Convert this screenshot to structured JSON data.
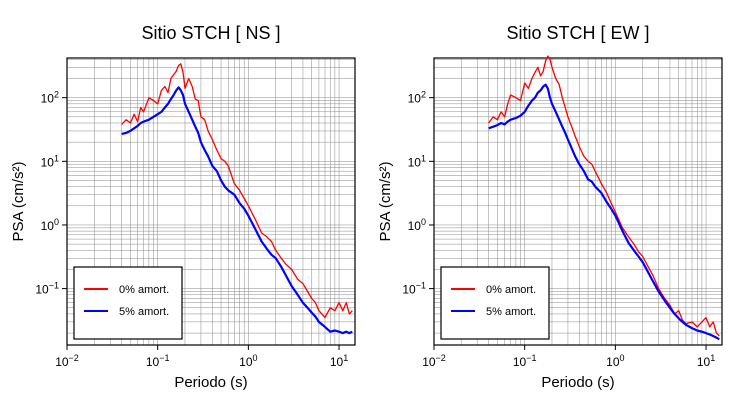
{
  "chart_data": [
    {
      "type": "line",
      "title": "Sitio STCH [ NS ]",
      "xlabel": "Periodo (s)",
      "ylabel": "PSA (cm/s²)",
      "x_scale": "log",
      "y_scale": "log",
      "xlim": [
        0.01,
        15
      ],
      "ylim": [
        0.013,
        420
      ],
      "grid": true,
      "legend_position": "bottom-left",
      "x_ticks": [
        {
          "value": 0.01,
          "base": "10",
          "exp": "−2"
        },
        {
          "value": 0.1,
          "base": "10",
          "exp": "−1"
        },
        {
          "value": 1,
          "base": "10",
          "exp": "0"
        },
        {
          "value": 10,
          "base": "10",
          "exp": "1"
        }
      ],
      "y_ticks": [
        {
          "value": 0.1,
          "base": "10",
          "exp": "−1"
        },
        {
          "value": 1,
          "base": "10",
          "exp": "0"
        },
        {
          "value": 10,
          "base": "10",
          "exp": "1"
        },
        {
          "value": 100,
          "base": "10",
          "exp": "2"
        }
      ],
      "series": [
        {
          "name": "0% amort.",
          "color": "#ff0000",
          "x": [
            0.04,
            0.045,
            0.05,
            0.055,
            0.06,
            0.065,
            0.07,
            0.08,
            0.09,
            0.1,
            0.11,
            0.12,
            0.13,
            0.14,
            0.15,
            0.16,
            0.17,
            0.18,
            0.19,
            0.2,
            0.22,
            0.24,
            0.26,
            0.28,
            0.3,
            0.33,
            0.36,
            0.4,
            0.45,
            0.5,
            0.55,
            0.6,
            0.7,
            0.8,
            0.9,
            1.0,
            1.2,
            1.4,
            1.6,
            1.8,
            2.0,
            2.3,
            2.6,
            3.0,
            3.5,
            4.0,
            4.5,
            5.0,
            5.5,
            6.0,
            7.0,
            8.0,
            9.0,
            10.0,
            11.0,
            12.0,
            13.0,
            14.0
          ],
          "y": [
            38,
            45,
            40,
            55,
            42,
            70,
            60,
            100,
            90,
            80,
            130,
            150,
            120,
            200,
            230,
            260,
            320,
            340,
            250,
            140,
            200,
            150,
            95,
            90,
            50,
            45,
            30,
            22,
            15,
            11,
            10,
            8.5,
            4.5,
            3.5,
            2.6,
            2.0,
            1.2,
            0.75,
            0.65,
            0.55,
            0.4,
            0.3,
            0.24,
            0.2,
            0.14,
            0.12,
            0.09,
            0.07,
            0.06,
            0.045,
            0.035,
            0.05,
            0.045,
            0.06,
            0.045,
            0.06,
            0.04,
            0.045
          ]
        },
        {
          "name": "5% amort.",
          "color": "#0000ff",
          "x": [
            0.04,
            0.045,
            0.05,
            0.055,
            0.06,
            0.065,
            0.07,
            0.08,
            0.09,
            0.1,
            0.11,
            0.12,
            0.13,
            0.14,
            0.15,
            0.16,
            0.17,
            0.18,
            0.19,
            0.2,
            0.22,
            0.24,
            0.26,
            0.28,
            0.3,
            0.33,
            0.36,
            0.4,
            0.45,
            0.5,
            0.55,
            0.6,
            0.7,
            0.8,
            0.9,
            1.0,
            1.2,
            1.4,
            1.6,
            1.8,
            2.0,
            2.3,
            2.6,
            3.0,
            3.5,
            4.0,
            4.5,
            5.0,
            5.5,
            6.0,
            7.0,
            8.0,
            9.0,
            10.0,
            11.0,
            12.0,
            13.0,
            14.0
          ],
          "y": [
            27,
            28,
            30,
            33,
            36,
            40,
            42,
            45,
            50,
            55,
            60,
            70,
            80,
            95,
            110,
            130,
            145,
            130,
            110,
            80,
            60,
            45,
            35,
            28,
            20,
            15,
            12,
            8.5,
            7,
            5,
            4,
            3.5,
            3.0,
            2.2,
            1.8,
            1.4,
            0.85,
            0.55,
            0.42,
            0.34,
            0.3,
            0.22,
            0.16,
            0.11,
            0.08,
            0.06,
            0.05,
            0.042,
            0.036,
            0.03,
            0.025,
            0.021,
            0.022,
            0.021,
            0.02,
            0.021,
            0.02,
            0.021
          ]
        }
      ]
    },
    {
      "type": "line",
      "title": "Sitio STCH [ EW ]",
      "xlabel": "Periodo (s)",
      "ylabel": "PSA (cm/s²)",
      "x_scale": "log",
      "y_scale": "log",
      "xlim": [
        0.01,
        15
      ],
      "ylim": [
        0.013,
        420
      ],
      "grid": true,
      "legend_position": "bottom-left",
      "x_ticks": [
        {
          "value": 0.01,
          "base": "10",
          "exp": "−2"
        },
        {
          "value": 0.1,
          "base": "10",
          "exp": "−1"
        },
        {
          "value": 1,
          "base": "10",
          "exp": "0"
        },
        {
          "value": 10,
          "base": "10",
          "exp": "1"
        }
      ],
      "y_ticks": [
        {
          "value": 0.1,
          "base": "10",
          "exp": "−1"
        },
        {
          "value": 1,
          "base": "10",
          "exp": "0"
        },
        {
          "value": 10,
          "base": "10",
          "exp": "1"
        },
        {
          "value": 100,
          "base": "10",
          "exp": "2"
        }
      ],
      "series": [
        {
          "name": "0% amort.",
          "color": "#ff0000",
          "x": [
            0.04,
            0.045,
            0.05,
            0.055,
            0.06,
            0.065,
            0.07,
            0.08,
            0.09,
            0.1,
            0.11,
            0.12,
            0.13,
            0.14,
            0.15,
            0.16,
            0.17,
            0.18,
            0.19,
            0.2,
            0.22,
            0.24,
            0.26,
            0.28,
            0.3,
            0.33,
            0.36,
            0.4,
            0.45,
            0.5,
            0.55,
            0.6,
            0.7,
            0.8,
            0.9,
            1.0,
            1.2,
            1.4,
            1.6,
            1.8,
            2.0,
            2.3,
            2.6,
            3.0,
            3.5,
            4.0,
            4.5,
            5.0,
            5.5,
            6.0,
            7.0,
            8.0,
            9.0,
            10.0,
            11.0,
            12.0,
            13.0,
            14.0
          ],
          "y": [
            40,
            50,
            45,
            60,
            50,
            80,
            110,
            100,
            90,
            170,
            140,
            200,
            250,
            300,
            220,
            260,
            380,
            450,
            400,
            300,
            200,
            160,
            100,
            70,
            50,
            35,
            25,
            17,
            12,
            10,
            9,
            7,
            4.5,
            3.2,
            2.2,
            1.6,
            0.9,
            0.65,
            0.5,
            0.38,
            0.32,
            0.22,
            0.16,
            0.1,
            0.07,
            0.055,
            0.04,
            0.045,
            0.032,
            0.028,
            0.03,
            0.025,
            0.03,
            0.035,
            0.025,
            0.03,
            0.02,
            0.018
          ]
        },
        {
          "name": "5% amort.",
          "color": "#0000ff",
          "x": [
            0.04,
            0.045,
            0.05,
            0.055,
            0.06,
            0.065,
            0.07,
            0.08,
            0.09,
            0.1,
            0.11,
            0.12,
            0.13,
            0.14,
            0.15,
            0.16,
            0.17,
            0.18,
            0.19,
            0.2,
            0.22,
            0.24,
            0.26,
            0.28,
            0.3,
            0.33,
            0.36,
            0.4,
            0.45,
            0.5,
            0.55,
            0.6,
            0.7,
            0.8,
            0.9,
            1.0,
            1.2,
            1.4,
            1.6,
            1.8,
            2.0,
            2.3,
            2.6,
            3.0,
            3.5,
            4.0,
            4.5,
            5.0,
            5.5,
            6.0,
            7.0,
            8.0,
            9.0,
            10.0,
            11.0,
            12.0,
            13.0,
            14.0
          ],
          "y": [
            33,
            35,
            37,
            40,
            38,
            42,
            45,
            48,
            52,
            60,
            75,
            90,
            100,
            120,
            130,
            150,
            160,
            140,
            100,
            80,
            60,
            45,
            35,
            28,
            22,
            16,
            12,
            9,
            7,
            5.2,
            4.8,
            4.0,
            3.2,
            2.3,
            1.8,
            1.4,
            0.8,
            0.52,
            0.4,
            0.32,
            0.26,
            0.18,
            0.13,
            0.09,
            0.065,
            0.05,
            0.04,
            0.034,
            0.03,
            0.027,
            0.024,
            0.022,
            0.021,
            0.02,
            0.019,
            0.018,
            0.017,
            0.016
          ]
        }
      ]
    }
  ]
}
